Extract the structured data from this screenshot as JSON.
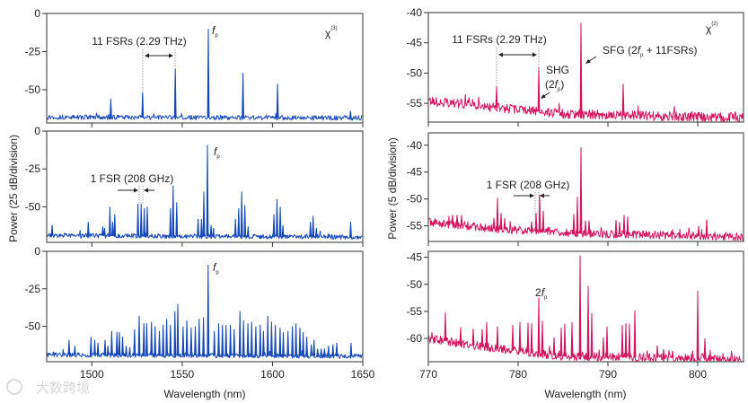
{
  "colors": {
    "chi3": "#1548b8",
    "chi2": "#d3145f",
    "axis": "#333333"
  },
  "left": {
    "ylabel": "Power  (25 dB/division)",
    "xlabel": "Wavelength (nm)",
    "chi_label": "χ",
    "chi_order": "(3)",
    "ann_top": "11 FSRs (2.29 THz)",
    "ann_mid": "1 FSR (208 GHz)",
    "fp_f": "f",
    "fp_p": "p"
  },
  "right": {
    "ylabel": "Power  (5 dB/division)",
    "xlabel": "Wavelength (nm)",
    "chi_label": "χ",
    "chi_order": "(2)",
    "ann_top": "11 FSRs (2.29 THz)",
    "shg": "SHG",
    "shg_sub_open": "(2",
    "shg_sub_close": ")",
    "sfg_open": "SFG (2",
    "sfg_close": " + 11FSRs)",
    "ann_mid": "1 FSR (208 GHz)",
    "two": "2",
    "fp_f": "f",
    "fp_p": "p"
  },
  "watermark": "大数跨境",
  "chart_data": [
    {
      "type": "line",
      "id": "chi3-top",
      "xlabel": "Wavelength (nm)",
      "ylabel": "Power (25 dB/division)",
      "xlim": [
        1475,
        1650
      ],
      "ylim": [
        -71.8,
        0
      ],
      "xticks": [
        1500,
        1550,
        1600,
        1650
      ],
      "yticks": [
        0,
        -25,
        -50
      ],
      "show_xticklabels": false,
      "noise_floor": [
        [
          1475,
          -68
        ],
        [
          1650,
          -68.5
        ]
      ],
      "noise_amplitude_db": 3,
      "peaks": [
        [
          1510.5,
          -56
        ],
        [
          1528.1,
          -51.6
        ],
        [
          1546.2,
          -36
        ],
        [
          1564.5,
          -10
        ],
        [
          1583.7,
          -39
        ],
        [
          1602.8,
          -46
        ],
        [
          1643.2,
          -64
        ]
      ]
    },
    {
      "type": "line",
      "id": "chi3-mid",
      "xlabel": "Wavelength (nm)",
      "ylabel": "Power (25 dB/division)",
      "xlim": [
        1475,
        1650
      ],
      "ylim": [
        -73.5,
        0
      ],
      "xticks": [
        1500,
        1550,
        1600,
        1650
      ],
      "yticks": [
        0,
        -25,
        -50
      ],
      "show_xticklabels": false,
      "noise_floor": [
        [
          1475,
          -69
        ],
        [
          1650,
          -70
        ]
      ],
      "noise_amplitude_db": 3,
      "peaks": [
        [
          1478,
          -62
        ],
        [
          1498,
          -60
        ],
        [
          1506,
          -63
        ],
        [
          1507,
          -64
        ],
        [
          1510,
          -50
        ],
        [
          1511.5,
          -60
        ],
        [
          1512.7,
          -55
        ],
        [
          1525.5,
          -48
        ],
        [
          1527.3,
          -48
        ],
        [
          1529,
          -51
        ],
        [
          1530.7,
          -50
        ],
        [
          1543.5,
          -51
        ],
        [
          1545,
          -36
        ],
        [
          1547,
          -47
        ],
        [
          1558.8,
          -58
        ],
        [
          1560.7,
          -58
        ],
        [
          1562,
          -40
        ],
        [
          1564,
          -9
        ],
        [
          1566,
          -62
        ],
        [
          1567.3,
          -64
        ],
        [
          1579.5,
          -58
        ],
        [
          1581.3,
          -51
        ],
        [
          1583,
          -40
        ],
        [
          1584.7,
          -49
        ],
        [
          1586.5,
          -63
        ],
        [
          1600.8,
          -55
        ],
        [
          1602.5,
          -45
        ],
        [
          1604.3,
          -50
        ],
        [
          1605.8,
          -62
        ],
        [
          1621,
          -60
        ],
        [
          1622.5,
          -56
        ],
        [
          1624.3,
          -64
        ],
        [
          1643.3,
          -60
        ]
      ]
    },
    {
      "type": "line",
      "id": "chi3-bottom",
      "xlabel": "Wavelength (nm)",
      "ylabel": "Power (25 dB/division)",
      "xlim": [
        1475,
        1650
      ],
      "ylim": [
        -73.6,
        0
      ],
      "xticks": [
        1500,
        1550,
        1600,
        1650
      ],
      "yticks": [
        0,
        -25,
        -50
      ],
      "show_xticklabels": true,
      "noise_floor": [
        [
          1475,
          -69
        ],
        [
          1650,
          -70
        ]
      ],
      "noise_amplitude_db": 3,
      "peaks": [
        [
          1487.4,
          -59
        ],
        [
          1490.6,
          -63
        ],
        [
          1499.5,
          -57
        ],
        [
          1501.6,
          -59
        ],
        [
          1503.4,
          -61
        ],
        [
          1507.3,
          -59
        ],
        [
          1508.9,
          -63
        ],
        [
          1511,
          -53
        ],
        [
          1513.9,
          -54
        ],
        [
          1515.2,
          -54
        ],
        [
          1517,
          -57
        ],
        [
          1519,
          -63
        ],
        [
          1521,
          -64
        ],
        [
          1523.6,
          -52
        ],
        [
          1526.2,
          -43
        ],
        [
          1528.8,
          -48
        ],
        [
          1530.4,
          -48
        ],
        [
          1533,
          -47
        ],
        [
          1535,
          -50
        ],
        [
          1537.4,
          -53
        ],
        [
          1539.5,
          -49
        ],
        [
          1541.4,
          -45
        ],
        [
          1543.5,
          -49
        ],
        [
          1546,
          -40
        ],
        [
          1547.6,
          -35
        ],
        [
          1550.5,
          -50
        ],
        [
          1552.6,
          -46
        ],
        [
          1555,
          -51
        ],
        [
          1557.3,
          -50
        ],
        [
          1559.4,
          -45
        ],
        [
          1561.8,
          -44
        ],
        [
          1564.4,
          -9
        ],
        [
          1567.8,
          -53
        ],
        [
          1570.2,
          -48
        ],
        [
          1572.3,
          -49
        ],
        [
          1574.3,
          -49
        ],
        [
          1576.7,
          -49
        ],
        [
          1578.8,
          -52
        ],
        [
          1582,
          -40
        ],
        [
          1584,
          -46
        ],
        [
          1586.4,
          -48
        ],
        [
          1588.5,
          -47
        ],
        [
          1590.8,
          -50
        ],
        [
          1593.2,
          -49
        ],
        [
          1595,
          -53
        ],
        [
          1597.4,
          -43
        ],
        [
          1599.5,
          -47
        ],
        [
          1601.6,
          -49
        ],
        [
          1604.2,
          -51
        ],
        [
          1606,
          -54
        ],
        [
          1608.6,
          -53
        ],
        [
          1611,
          -50
        ],
        [
          1613,
          -48
        ],
        [
          1615.2,
          -51
        ],
        [
          1617,
          -54
        ],
        [
          1619,
          -57
        ],
        [
          1621.5,
          -62
        ],
        [
          1623,
          -59
        ],
        [
          1625,
          -65
        ],
        [
          1627,
          -65
        ],
        [
          1628.8,
          -65
        ],
        [
          1631,
          -63
        ],
        [
          1633.5,
          -62
        ],
        [
          1635.6,
          -61
        ],
        [
          1643.5,
          -61
        ]
      ]
    },
    {
      "type": "line",
      "id": "chi2-top",
      "xlabel": "Wavelength (nm)",
      "ylabel": "Power (5 dB/division)",
      "xlim": [
        770,
        805.1
      ],
      "ylim": [
        -58.1,
        -40
      ],
      "xticks": [
        770,
        780,
        790,
        800
      ],
      "yticks": [
        -40,
        -45,
        -50,
        -55
      ],
      "show_xticklabels": false,
      "noise_floor": [
        [
          770,
          -54.6
        ],
        [
          778,
          -55.8
        ],
        [
          786,
          -56.8
        ],
        [
          805.1,
          -57.4
        ]
      ],
      "noise_amplitude_db": 1.6,
      "peaks": [
        [
          777.6,
          -52.2
        ],
        [
          782.3,
          -49
        ],
        [
          787,
          -41.7
        ],
        [
          791.7,
          -51.8
        ]
      ]
    },
    {
      "type": "line",
      "id": "chi2-mid",
      "xlabel": "Wavelength (nm)",
      "ylabel": "Power (5 dB/division)",
      "xlim": [
        770,
        805.1
      ],
      "ylim": [
        -57.9,
        -37.7
      ],
      "xticks": [
        770,
        780,
        790,
        800
      ],
      "yticks": [
        -40,
        -45,
        -50,
        -55
      ],
      "show_xticklabels": false,
      "noise_floor": [
        [
          770,
          -54.3
        ],
        [
          778,
          -55.6
        ],
        [
          786,
          -56.4
        ],
        [
          805.1,
          -57
        ]
      ],
      "noise_amplitude_db": 1.5,
      "peaks": [
        [
          772.7,
          -53
        ],
        [
          773.2,
          -53
        ],
        [
          773.7,
          -53
        ],
        [
          777.3,
          -53.6
        ],
        [
          777.7,
          -49.8
        ],
        [
          778.1,
          -52.6
        ],
        [
          778.5,
          -53.6
        ],
        [
          781.5,
          -54.2
        ],
        [
          782,
          -52.6
        ],
        [
          782.4,
          -49.2
        ],
        [
          782.8,
          -52.2
        ],
        [
          786.2,
          -52.8
        ],
        [
          786.6,
          -49.6
        ],
        [
          787,
          -40.4
        ],
        [
          787.5,
          -54
        ],
        [
          787.9,
          -54
        ],
        [
          790.9,
          -53.9
        ],
        [
          791.3,
          -54.3
        ],
        [
          791.8,
          -53
        ],
        [
          792.2,
          -53.3
        ],
        [
          800.1,
          -55
        ],
        [
          801,
          -53.8
        ]
      ]
    },
    {
      "type": "line",
      "id": "chi2-bottom",
      "xlabel": "Wavelength (nm)",
      "ylabel": "Power (5 dB/division)",
      "xlim": [
        770,
        805.1
      ],
      "ylim": [
        -64.3,
        -43.9
      ],
      "xticks": [
        770,
        780,
        790,
        800
      ],
      "yticks": [
        -45,
        -50,
        -55,
        -60
      ],
      "show_xticklabels": true,
      "noise_floor": [
        [
          770,
          -60
        ],
        [
          776,
          -61.5
        ],
        [
          785,
          -63.3
        ],
        [
          805.1,
          -63.8
        ]
      ],
      "noise_amplitude_db": 1.6,
      "peaks": [
        [
          771.9,
          -55.2
        ],
        [
          773.6,
          -57.9
        ],
        [
          775,
          -58.2
        ],
        [
          776,
          -58.3
        ],
        [
          776.5,
          -57
        ],
        [
          777.7,
          -57.8
        ],
        [
          779.4,
          -57.5
        ],
        [
          780.2,
          -57
        ],
        [
          781.1,
          -57.1
        ],
        [
          781.5,
          -57.2
        ],
        [
          782.3,
          -52.5
        ],
        [
          782.7,
          -56.7
        ],
        [
          784,
          -59.8
        ],
        [
          784.8,
          -58
        ],
        [
          785.2,
          -57.3
        ],
        [
          786,
          -57
        ],
        [
          786.9,
          -44.7
        ],
        [
          787.8,
          -50.3
        ],
        [
          788.2,
          -55.3
        ],
        [
          789.5,
          -59.8
        ],
        [
          789.9,
          -57.8
        ],
        [
          791.6,
          -57.5
        ],
        [
          792,
          -57.2
        ],
        [
          792.4,
          -57.2
        ],
        [
          793,
          -54.8
        ],
        [
          795.5,
          -61.3
        ],
        [
          796.2,
          -62
        ],
        [
          797.2,
          -62.3
        ],
        [
          800,
          -51.2
        ],
        [
          800.8,
          -60
        ]
      ]
    }
  ]
}
